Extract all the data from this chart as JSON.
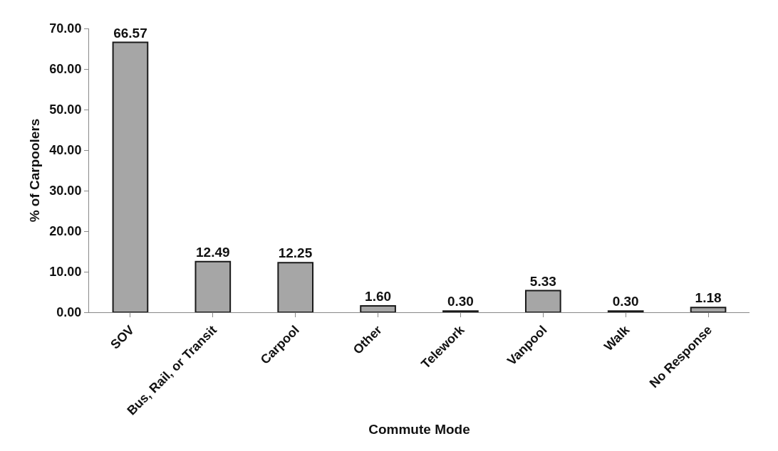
{
  "chart_data": {
    "type": "bar",
    "xlabel": "Commute Mode",
    "ylabel": "% of Carpoolers",
    "categories": [
      "SOV",
      "Bus, Rail, or Transit",
      "Carpool",
      "Other",
      "Telework",
      "Vanpool",
      "Walk",
      "No Response"
    ],
    "values": [
      66.57,
      12.49,
      12.25,
      1.6,
      0.3,
      5.33,
      0.3,
      1.18
    ],
    "value_labels": [
      "66.57",
      "12.49",
      "12.25",
      "1.60",
      "0.30",
      "5.33",
      "0.30",
      "1.18"
    ],
    "color": "#a6a6a6",
    "ylim": [
      0,
      70
    ],
    "yticks": [
      {
        "value": 0,
        "label": "0.00"
      },
      {
        "value": 10,
        "label": "10.00"
      },
      {
        "value": 20,
        "label": "20.00"
      },
      {
        "value": 30,
        "label": "30.00"
      },
      {
        "value": 40,
        "label": "40.00"
      },
      {
        "value": 50,
        "label": "50.00"
      },
      {
        "value": 60,
        "label": "60.00"
      },
      {
        "value": 70,
        "label": "70.00"
      }
    ],
    "grid": false
  }
}
